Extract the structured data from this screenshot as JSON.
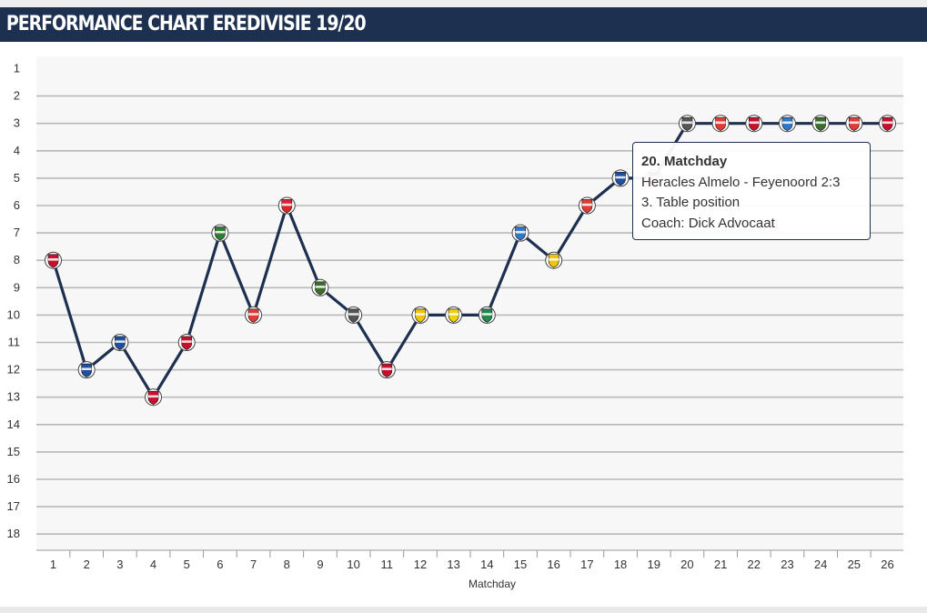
{
  "header": {
    "title": "PERFORMANCE CHART EREDIVISIE 19/20"
  },
  "chart_data": {
    "type": "line",
    "title": "PERFORMANCE CHART EREDIVISIE 19/20",
    "xlabel": "Matchday",
    "ylabel": "",
    "x": [
      1,
      2,
      3,
      4,
      5,
      6,
      7,
      8,
      9,
      10,
      11,
      12,
      13,
      14,
      15,
      16,
      17,
      18,
      19,
      20,
      21,
      22,
      23,
      24,
      25,
      26
    ],
    "xlim": [
      1,
      26
    ],
    "ylim": [
      1,
      18
    ],
    "y_reversed": true,
    "y_ticks": [
      1,
      2,
      3,
      4,
      5,
      6,
      7,
      8,
      9,
      10,
      11,
      12,
      13,
      14,
      15,
      16,
      17,
      18
    ],
    "grid": true,
    "legend": "none",
    "series": [
      {
        "values": [
          8,
          12,
          11,
          13,
          11,
          7,
          10,
          6,
          9,
          10,
          12,
          10,
          10,
          10,
          7,
          8,
          6,
          5,
          5,
          3,
          3,
          3,
          3,
          3,
          3,
          3
        ],
        "color": "#1e3050"
      }
    ],
    "markers": [
      {
        "x": 1,
        "icon": "club-crest-icon",
        "color": "#c8102e"
      },
      {
        "x": 2,
        "icon": "club-crest-icon",
        "color": "#1f4fa0"
      },
      {
        "x": 3,
        "icon": "club-crest-icon",
        "color": "#1f4fa0"
      },
      {
        "x": 4,
        "icon": "club-crest-icon",
        "color": "#c8102e"
      },
      {
        "x": 5,
        "icon": "club-crest-icon",
        "color": "#c8102e"
      },
      {
        "x": 6,
        "icon": "club-crest-icon",
        "color": "#2e7d32"
      },
      {
        "x": 7,
        "icon": "club-crest-icon",
        "color": "#e53935"
      },
      {
        "x": 8,
        "icon": "club-crest-icon",
        "color": "#e0202a"
      },
      {
        "x": 9,
        "icon": "club-crest-icon",
        "color": "#3c6e2b"
      },
      {
        "x": 10,
        "icon": "club-crest-icon",
        "color": "#555555"
      },
      {
        "x": 11,
        "icon": "club-crest-icon",
        "color": "#c8102e"
      },
      {
        "x": 12,
        "icon": "club-crest-icon",
        "color": "#f2c500"
      },
      {
        "x": 13,
        "icon": "club-crest-icon",
        "color": "#f2d100"
      },
      {
        "x": 14,
        "icon": "club-crest-icon",
        "color": "#1f8a4c"
      },
      {
        "x": 15,
        "icon": "club-crest-icon",
        "color": "#2f78c8"
      },
      {
        "x": 16,
        "icon": "club-crest-icon",
        "color": "#f2c500"
      },
      {
        "x": 17,
        "icon": "club-crest-icon",
        "color": "#e53935"
      },
      {
        "x": 18,
        "icon": "club-crest-icon",
        "color": "#1f4fa0"
      },
      {
        "x": 19,
        "icon": "club-crest-icon",
        "color": "#c8102e"
      },
      {
        "x": 20,
        "icon": "club-crest-icon",
        "color": "#555555"
      },
      {
        "x": 21,
        "icon": "club-crest-icon",
        "color": "#e53935"
      },
      {
        "x": 22,
        "icon": "club-crest-icon",
        "color": "#c8102e"
      },
      {
        "x": 23,
        "icon": "club-crest-icon",
        "color": "#2f78c8"
      },
      {
        "x": 24,
        "icon": "club-crest-icon",
        "color": "#3c6e2b"
      },
      {
        "x": 25,
        "icon": "club-crest-icon",
        "color": "#e53935"
      },
      {
        "x": 26,
        "icon": "club-crest-icon",
        "color": "#c8102e"
      }
    ]
  },
  "tooltip": {
    "title": "20. Matchday",
    "match": "Heracles Almelo - Feyenoord 2:3",
    "position": "3. Table position",
    "coach": "Coach: Dick Advocaat"
  },
  "colors": {
    "header_bg": "#1e3050",
    "line": "#1e3050",
    "plot_bg": "#f7f7f7",
    "grid": "#b9b9b9"
  }
}
